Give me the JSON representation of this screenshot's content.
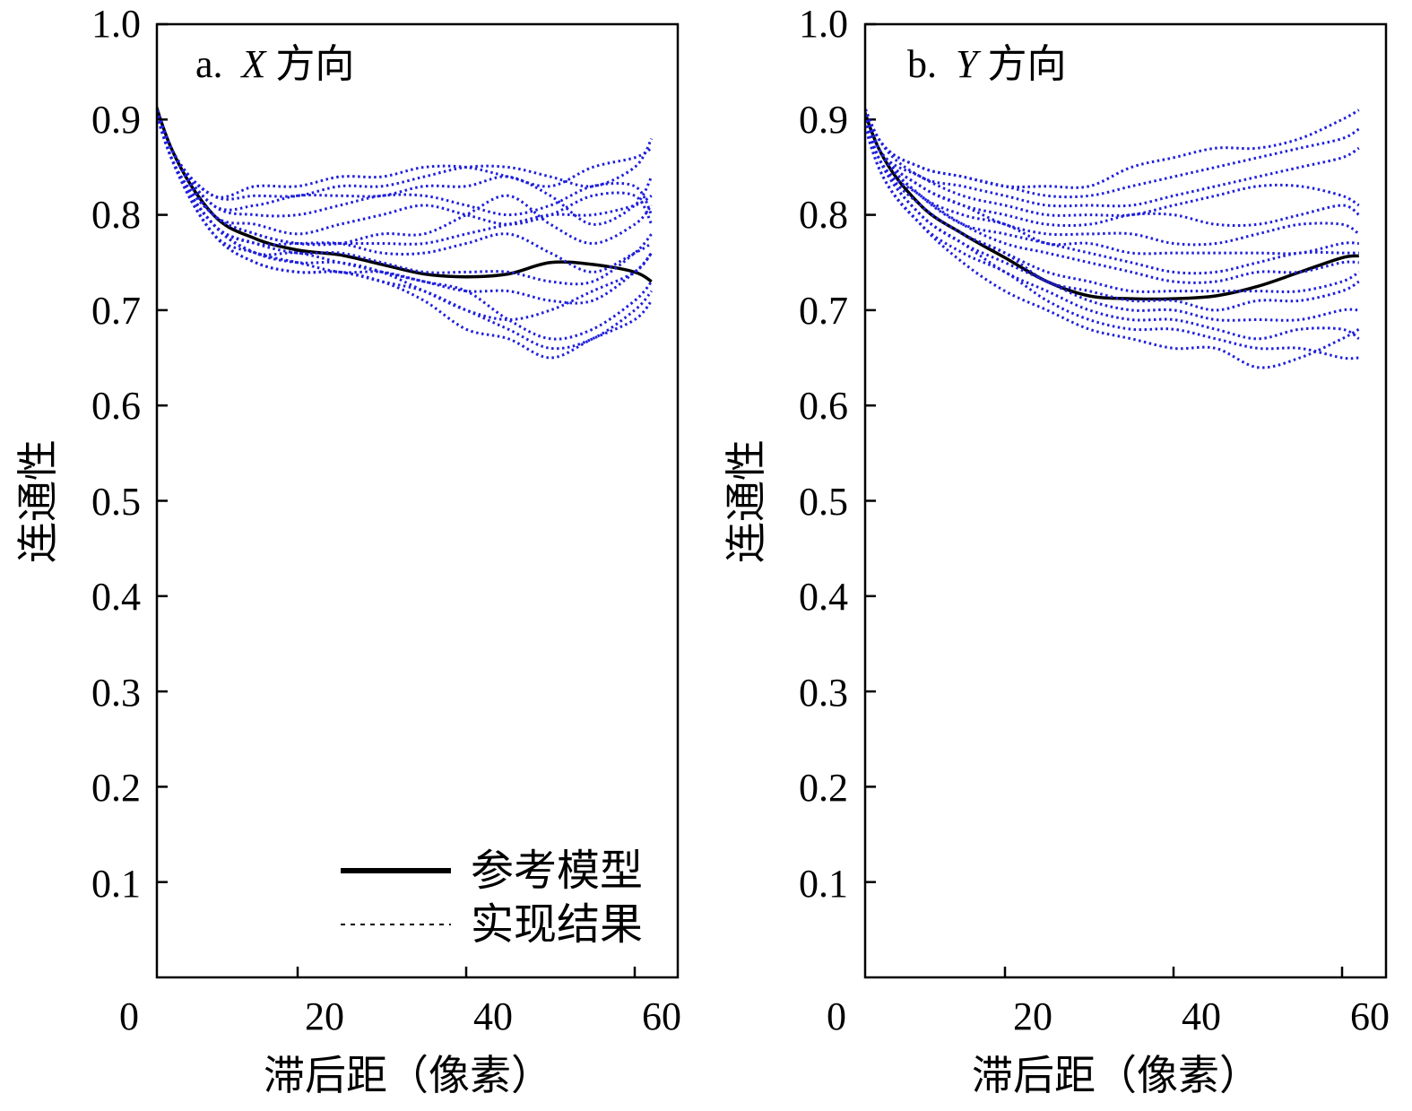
{
  "colors": {
    "reference": "#000000",
    "realization": "#1f1fdd",
    "axis": "#000000",
    "background": "#ffffff"
  },
  "legend": {
    "reference_label": "参考模型",
    "realization_label": "实现结果",
    "placement": "bottom-right of panel a"
  },
  "chart_data": [
    {
      "type": "line",
      "panel_label": "a.",
      "title_var": "X",
      "title_rest": "方向",
      "xlabel": "滞后距（像素）",
      "ylabel": "连通性",
      "xlim": [
        0,
        62
      ],
      "ylim": [
        0,
        1.0
      ],
      "xticks": [
        0,
        20,
        40,
        60
      ],
      "yticks": [
        0.1,
        0.2,
        0.3,
        0.4,
        0.5,
        0.6,
        0.7,
        0.8,
        0.9,
        1.0
      ],
      "x": [
        1,
        5,
        10,
        15,
        20,
        25,
        30,
        35,
        40,
        45,
        50,
        55,
        60,
        62
      ],
      "reference": {
        "name": "参考模型",
        "values": [
          0.98,
          0.87,
          0.8,
          0.775,
          0.763,
          0.758,
          0.748,
          0.738,
          0.735,
          0.738,
          0.75,
          0.748,
          0.74,
          0.73
        ]
      },
      "realizations": [
        {
          "name": "实现结果",
          "values": [
            0.98,
            0.87,
            0.82,
            0.83,
            0.83,
            0.84,
            0.84,
            0.85,
            0.85,
            0.84,
            0.83,
            0.85,
            0.86,
            0.87
          ]
        },
        {
          "name": "实现结果",
          "values": [
            0.98,
            0.87,
            0.82,
            0.82,
            0.82,
            0.83,
            0.83,
            0.84,
            0.85,
            0.85,
            0.84,
            0.83,
            0.85,
            0.88
          ]
        },
        {
          "name": "实现结果",
          "values": [
            0.98,
            0.87,
            0.81,
            0.81,
            0.82,
            0.82,
            0.82,
            0.83,
            0.83,
            0.84,
            0.82,
            0.79,
            0.81,
            0.84
          ]
        },
        {
          "name": "实现结果",
          "values": [
            0.98,
            0.87,
            0.81,
            0.8,
            0.8,
            0.81,
            0.82,
            0.82,
            0.81,
            0.8,
            0.81,
            0.83,
            0.83,
            0.8
          ]
        },
        {
          "name": "实现结果",
          "values": [
            0.98,
            0.87,
            0.8,
            0.79,
            0.78,
            0.79,
            0.8,
            0.81,
            0.8,
            0.79,
            0.8,
            0.82,
            0.82,
            0.79
          ]
        },
        {
          "name": "实现结果",
          "values": [
            0.98,
            0.86,
            0.8,
            0.78,
            0.77,
            0.77,
            0.78,
            0.78,
            0.8,
            0.82,
            0.79,
            0.77,
            0.79,
            0.81
          ]
        },
        {
          "name": "实现结果",
          "values": [
            0.98,
            0.86,
            0.8,
            0.78,
            0.77,
            0.77,
            0.77,
            0.77,
            0.78,
            0.79,
            0.8,
            0.8,
            0.81,
            0.82
          ]
        },
        {
          "name": "实现结果",
          "values": [
            0.98,
            0.86,
            0.79,
            0.77,
            0.77,
            0.77,
            0.76,
            0.76,
            0.77,
            0.78,
            0.76,
            0.74,
            0.76,
            0.77
          ]
        },
        {
          "name": "实现结果",
          "values": [
            0.98,
            0.86,
            0.79,
            0.77,
            0.76,
            0.76,
            0.75,
            0.74,
            0.74,
            0.74,
            0.73,
            0.73,
            0.76,
            0.78
          ]
        },
        {
          "name": "实现结果",
          "values": [
            0.98,
            0.86,
            0.79,
            0.76,
            0.76,
            0.75,
            0.74,
            0.73,
            0.72,
            0.72,
            0.71,
            0.71,
            0.74,
            0.76
          ]
        },
        {
          "name": "实现结果",
          "values": [
            0.98,
            0.86,
            0.79,
            0.76,
            0.75,
            0.75,
            0.74,
            0.72,
            0.7,
            0.69,
            0.7,
            0.72,
            0.74,
            0.76
          ]
        },
        {
          "name": "实现结果",
          "values": [
            0.98,
            0.86,
            0.78,
            0.76,
            0.75,
            0.74,
            0.74,
            0.73,
            0.72,
            0.69,
            0.67,
            0.68,
            0.71,
            0.73
          ]
        },
        {
          "name": "实现结果",
          "values": [
            0.98,
            0.86,
            0.78,
            0.75,
            0.74,
            0.74,
            0.73,
            0.72,
            0.7,
            0.68,
            0.66,
            0.67,
            0.7,
            0.72
          ]
        },
        {
          "name": "实现结果",
          "values": [
            0.98,
            0.86,
            0.78,
            0.75,
            0.74,
            0.74,
            0.73,
            0.71,
            0.68,
            0.67,
            0.65,
            0.67,
            0.69,
            0.71
          ]
        }
      ]
    },
    {
      "type": "line",
      "panel_label": "b.",
      "title_var": "Y",
      "title_rest": "方向",
      "xlabel": "滞后距（像素）",
      "ylabel": "连通性",
      "xlim": [
        0,
        62
      ],
      "ylim": [
        0,
        1.0
      ],
      "xticks": [
        0,
        20,
        40,
        60
      ],
      "yticks": [
        0.1,
        0.2,
        0.3,
        0.4,
        0.5,
        0.6,
        0.7,
        0.8,
        0.9,
        1.0
      ],
      "x": [
        1,
        5,
        10,
        15,
        20,
        25,
        30,
        35,
        40,
        45,
        50,
        55,
        60,
        62
      ],
      "reference": {
        "name": "参考模型",
        "values": [
          0.975,
          0.87,
          0.81,
          0.78,
          0.755,
          0.73,
          0.715,
          0.712,
          0.712,
          0.715,
          0.725,
          0.74,
          0.755,
          0.757
        ]
      },
      "realizations": [
        {
          "name": "实现结果",
          "values": [
            0.975,
            0.88,
            0.85,
            0.84,
            0.83,
            0.83,
            0.83,
            0.85,
            0.86,
            0.87,
            0.87,
            0.88,
            0.9,
            0.91
          ]
        },
        {
          "name": "实现结果",
          "values": [
            0.975,
            0.88,
            0.85,
            0.84,
            0.83,
            0.82,
            0.82,
            0.83,
            0.84,
            0.85,
            0.86,
            0.87,
            0.88,
            0.89
          ]
        },
        {
          "name": "实现结果",
          "values": [
            0.975,
            0.88,
            0.84,
            0.83,
            0.82,
            0.81,
            0.81,
            0.81,
            0.82,
            0.83,
            0.84,
            0.85,
            0.86,
            0.87
          ]
        },
        {
          "name": "实现结果",
          "values": [
            0.975,
            0.87,
            0.84,
            0.82,
            0.81,
            0.8,
            0.8,
            0.8,
            0.81,
            0.82,
            0.83,
            0.83,
            0.82,
            0.81
          ]
        },
        {
          "name": "实现结果",
          "values": [
            0.975,
            0.87,
            0.83,
            0.81,
            0.8,
            0.79,
            0.79,
            0.8,
            0.8,
            0.79,
            0.79,
            0.8,
            0.81,
            0.8
          ]
        },
        {
          "name": "实现结果",
          "values": [
            0.975,
            0.87,
            0.83,
            0.81,
            0.79,
            0.78,
            0.78,
            0.78,
            0.77,
            0.77,
            0.78,
            0.79,
            0.79,
            0.78
          ]
        },
        {
          "name": "实现结果",
          "values": [
            0.975,
            0.87,
            0.82,
            0.8,
            0.79,
            0.77,
            0.77,
            0.76,
            0.76,
            0.76,
            0.76,
            0.76,
            0.77,
            0.77
          ]
        },
        {
          "name": "实现结果",
          "values": [
            0.975,
            0.87,
            0.82,
            0.79,
            0.78,
            0.77,
            0.76,
            0.75,
            0.74,
            0.74,
            0.75,
            0.76,
            0.76,
            0.76
          ]
        },
        {
          "name": "实现结果",
          "values": [
            0.975,
            0.86,
            0.82,
            0.79,
            0.77,
            0.76,
            0.75,
            0.74,
            0.73,
            0.73,
            0.74,
            0.74,
            0.75,
            0.75
          ]
        },
        {
          "name": "实现结果",
          "values": [
            0.975,
            0.86,
            0.81,
            0.78,
            0.76,
            0.74,
            0.73,
            0.72,
            0.72,
            0.72,
            0.72,
            0.72,
            0.73,
            0.74
          ]
        },
        {
          "name": "实现结果",
          "values": [
            0.975,
            0.86,
            0.81,
            0.78,
            0.76,
            0.73,
            0.72,
            0.71,
            0.71,
            0.7,
            0.71,
            0.71,
            0.72,
            0.73
          ]
        },
        {
          "name": "实现结果",
          "values": [
            0.975,
            0.86,
            0.8,
            0.77,
            0.75,
            0.73,
            0.71,
            0.7,
            0.7,
            0.69,
            0.69,
            0.69,
            0.7,
            0.7
          ]
        },
        {
          "name": "实现结果",
          "values": [
            0.975,
            0.86,
            0.8,
            0.77,
            0.74,
            0.72,
            0.7,
            0.69,
            0.69,
            0.68,
            0.67,
            0.68,
            0.68,
            0.67
          ]
        },
        {
          "name": "实现结果",
          "values": [
            0.975,
            0.85,
            0.79,
            0.76,
            0.74,
            0.71,
            0.69,
            0.68,
            0.68,
            0.67,
            0.66,
            0.66,
            0.65,
            0.65
          ]
        },
        {
          "name": "实现结果",
          "values": [
            0.975,
            0.85,
            0.79,
            0.75,
            0.72,
            0.7,
            0.68,
            0.67,
            0.66,
            0.66,
            0.64,
            0.65,
            0.67,
            0.68
          ]
        }
      ]
    }
  ]
}
